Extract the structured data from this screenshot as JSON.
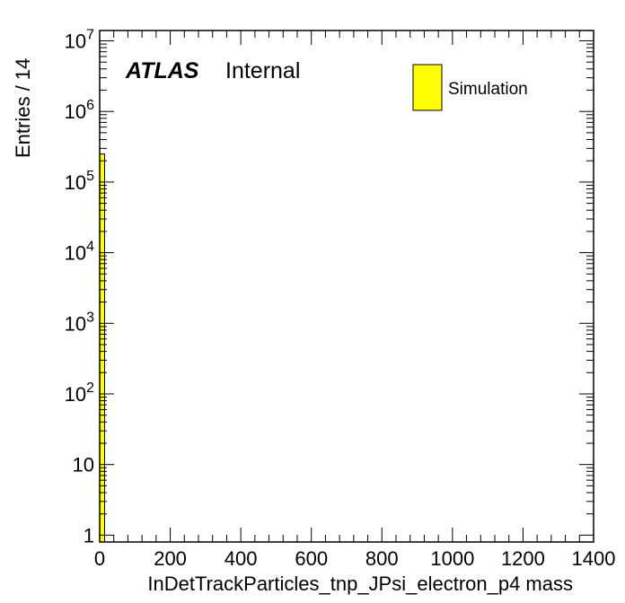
{
  "chart_data": {
    "type": "bar",
    "xlabel": "InDetTrackParticles_tnp_JPsi_electron_p4 mass",
    "ylabel": "Entries / 14",
    "xlim": [
      0,
      1400
    ],
    "ylim": [
      0.8,
      14000000
    ],
    "y_scale": "log",
    "x_ticks": [
      0,
      200,
      400,
      600,
      800,
      1000,
      1200,
      1400
    ],
    "x_tick_labels": [
      "0",
      "200",
      "400",
      "600",
      "800",
      "1000",
      "1200",
      "1400"
    ],
    "y_ticks": [
      1,
      10,
      100,
      1000,
      10000,
      100000,
      1000000,
      10000000
    ],
    "y_tick_labels": [
      {
        "base": "1",
        "exp": ""
      },
      {
        "base": "10",
        "exp": ""
      },
      {
        "base": "10",
        "exp": "2"
      },
      {
        "base": "10",
        "exp": "3"
      },
      {
        "base": "10",
        "exp": "4"
      },
      {
        "base": "10",
        "exp": "5"
      },
      {
        "base": "10",
        "exp": "6"
      },
      {
        "base": "10",
        "exp": "7"
      }
    ],
    "bins": [
      {
        "x_low": 0,
        "x_high": 14,
        "value": 250000
      }
    ],
    "series": [
      {
        "name": "Simulation",
        "color": "#ffff00"
      }
    ],
    "legend_position": "top-right",
    "grid": false
  },
  "labels": {
    "atlas": "ATLAS",
    "status": "Internal"
  }
}
